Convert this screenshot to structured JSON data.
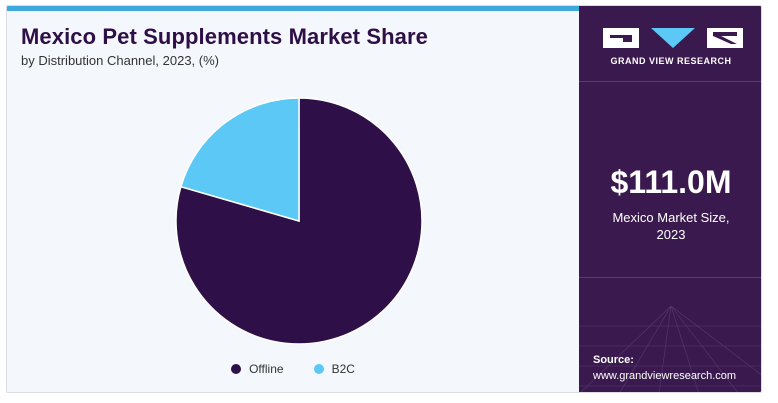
{
  "header": {
    "title": "Mexico Pet Supplements Market Share",
    "subtitle": "by Distribution Channel, 2023, (%)"
  },
  "chart_data": {
    "type": "pie",
    "categories": [
      "Offline",
      "B2C"
    ],
    "values": [
      79.5,
      20.5
    ],
    "colors": [
      "#2e0f47",
      "#5bc8f5"
    ],
    "legend_position": "bottom"
  },
  "legend": {
    "items": [
      {
        "label": "Offline",
        "color": "#2e0f47"
      },
      {
        "label": "B2C",
        "color": "#5bc8f5"
      }
    ]
  },
  "sidebar": {
    "brand": "GRAND VIEW RESEARCH",
    "market_size": "$111.0M",
    "market_label_line1": "Mexico Market Size,",
    "market_label_line2": "2023",
    "source_label": "Source:",
    "source_url": "www.grandviewresearch.com"
  },
  "colors": {
    "panel": "#3a1a4e",
    "accent": "#3fa9dd",
    "title": "#2e0f47"
  }
}
